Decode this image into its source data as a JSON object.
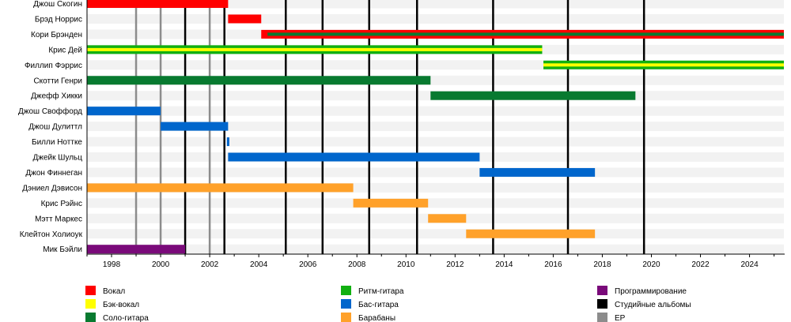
{
  "chart_data": {
    "type": "timeline",
    "xlim": [
      1997.0,
      2025.4
    ],
    "x_ticks": [
      1998,
      2000,
      2002,
      2004,
      2006,
      2008,
      2010,
      2012,
      2014,
      2016,
      2018,
      2020,
      2022,
      2024
    ],
    "grid": false,
    "legend_placement": "bottom",
    "roles": {
      "vocal": {
        "label": "Вокал",
        "color": "#ff0000"
      },
      "backing": {
        "label": "Бэк-вокал",
        "color": "#ffff00"
      },
      "lead": {
        "label": "Соло-гитара",
        "color": "#087a30"
      },
      "rhythm": {
        "label": "Ритм-гитара",
        "color": "#11b011"
      },
      "bass": {
        "label": "Бас-гитара",
        "color": "#0066cc"
      },
      "drums": {
        "label": "Барабаны",
        "color": "#ffa12a"
      },
      "programming": {
        "label": "Программирование",
        "color": "#7a0a7a"
      },
      "albums": {
        "label": "Студийные альбомы",
        "color": "#000000"
      },
      "ep": {
        "label": "EP",
        "color": "#8c8c8c"
      }
    },
    "legend_columns": [
      [
        "vocal",
        "backing",
        "lead"
      ],
      [
        "rhythm",
        "bass",
        "drums"
      ],
      [
        "programming",
        "albums",
        "ep"
      ]
    ],
    "members": [
      {
        "name": "Джош Скогин",
        "spans": [
          {
            "start": 1997.0,
            "end": 2002.75,
            "role": "vocal"
          }
        ]
      },
      {
        "name": "Брэд Норрис",
        "spans": [
          {
            "start": 2002.75,
            "end": 2004.1,
            "role": "vocal"
          }
        ]
      },
      {
        "name": "Кори Брэнден",
        "spans": [
          {
            "start": 2004.1,
            "end": 2025.4,
            "role": "vocal",
            "secondary": "lead"
          }
        ]
      },
      {
        "name": "Крис Дей",
        "spans": [
          {
            "start": 1997.0,
            "end": 2015.55,
            "role": "rhythm",
            "secondary": "backing"
          }
        ]
      },
      {
        "name": "Филлип Фэррис",
        "spans": [
          {
            "start": 2015.6,
            "end": 2025.4,
            "role": "rhythm",
            "secondary": "backing"
          }
        ]
      },
      {
        "name": "Скотти Генри",
        "spans": [
          {
            "start": 1997.0,
            "end": 2011.0,
            "role": "lead"
          }
        ]
      },
      {
        "name": "Джефф Хикки",
        "spans": [
          {
            "start": 2011.0,
            "end": 2019.35,
            "role": "lead"
          }
        ]
      },
      {
        "name": "Джош Своффорд",
        "spans": [
          {
            "start": 1997.0,
            "end": 2000.0,
            "role": "bass"
          }
        ]
      },
      {
        "name": "Джош Дулиттл",
        "spans": [
          {
            "start": 2000.0,
            "end": 2002.75,
            "role": "bass"
          }
        ]
      },
      {
        "name": "Билли Ноттке",
        "spans": [
          {
            "start": 2002.7,
            "end": 2002.8,
            "role": "bass"
          }
        ]
      },
      {
        "name": "Джейк Шульц",
        "spans": [
          {
            "start": 2002.75,
            "end": 2013.0,
            "role": "bass"
          }
        ]
      },
      {
        "name": "Джон Финнеган",
        "spans": [
          {
            "start": 2013.0,
            "end": 2017.7,
            "role": "bass"
          }
        ]
      },
      {
        "name": "Дэниел Дэвисон",
        "spans": [
          {
            "start": 1997.0,
            "end": 2007.85,
            "role": "drums"
          }
        ]
      },
      {
        "name": "Крис Рэйнс",
        "spans": [
          {
            "start": 2007.85,
            "end": 2010.9,
            "role": "drums"
          }
        ]
      },
      {
        "name": "Мэтт Маркес",
        "spans": [
          {
            "start": 2010.9,
            "end": 2012.45,
            "role": "drums"
          }
        ]
      },
      {
        "name": "Клейтон Холиоук",
        "spans": [
          {
            "start": 2012.45,
            "end": 2017.7,
            "role": "drums"
          }
        ]
      },
      {
        "name": "Мик Бэйли",
        "spans": [
          {
            "start": 1997.0,
            "end": 2001.0,
            "role": "programming"
          }
        ]
      }
    ],
    "studio_albums": [
      2001.0,
      2002.6,
      2005.1,
      2006.6,
      2008.5,
      2010.45,
      2013.55,
      2016.6,
      2019.7
    ],
    "eps": [
      1999.0,
      2000.0,
      2002.0
    ]
  }
}
